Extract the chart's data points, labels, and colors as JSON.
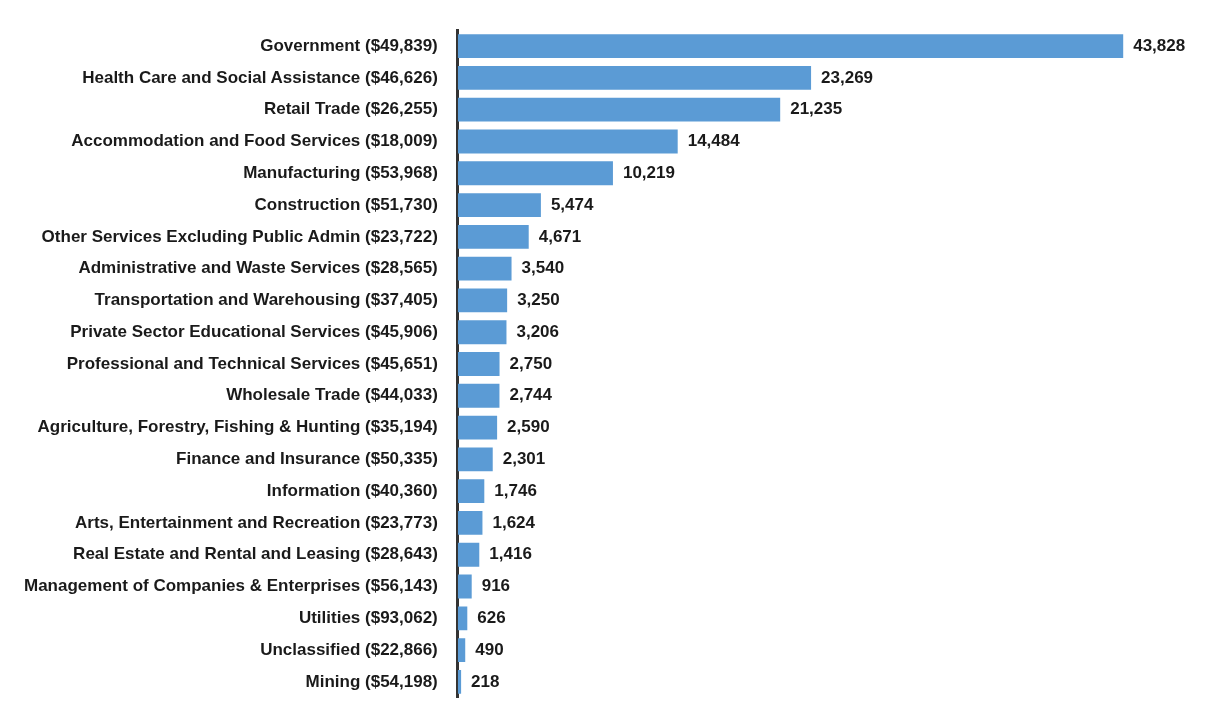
{
  "chart_data": {
    "type": "bar",
    "orientation": "horizontal",
    "categories": [
      "Government ($49,839)",
      "Health Care and Social Assistance ($46,626)",
      "Retail Trade ($26,255)",
      "Accommodation and Food Services ($18,009)",
      "Manufacturing ($53,968)",
      "Construction ($51,730)",
      "Other Services Excluding Public Admin ($23,722)",
      "Administrative and Waste Services ($28,565)",
      "Transportation and Warehousing ($37,405)",
      "Private Sector Educational Services ($45,906)",
      "Professional and Technical Services ($45,651)",
      "Wholesale Trade ($44,033)",
      "Agriculture, Forestry, Fishing & Hunting ($35,194)",
      "Finance and Insurance ($50,335)",
      "Information ($40,360)",
      "Arts, Entertainment and Recreation ($23,773)",
      "Real Estate and Rental and Leasing ($28,643)",
      "Management of Companies & Enterprises ($56,143)",
      "Utilities ($93,062)",
      "Unclassified ($22,866)",
      "Mining ($54,198)"
    ],
    "values": [
      43828,
      23269,
      21235,
      14484,
      10219,
      5474,
      4671,
      3540,
      3250,
      3206,
      2750,
      2744,
      2590,
      2301,
      1746,
      1624,
      1416,
      916,
      626,
      490,
      218
    ],
    "value_labels": [
      "43,828",
      "23,269",
      "21,235",
      "14,484",
      "10,219",
      "5,474",
      "4,671",
      "3,540",
      "3,250",
      "3,206",
      "2,750",
      "2,744",
      "2,590",
      "2,301",
      "1,746",
      "1,624",
      "1,416",
      "916",
      "626",
      "490",
      "218"
    ],
    "color": "#5b9bd5",
    "tick_labels": "y",
    "grid": false,
    "legend": false
  }
}
